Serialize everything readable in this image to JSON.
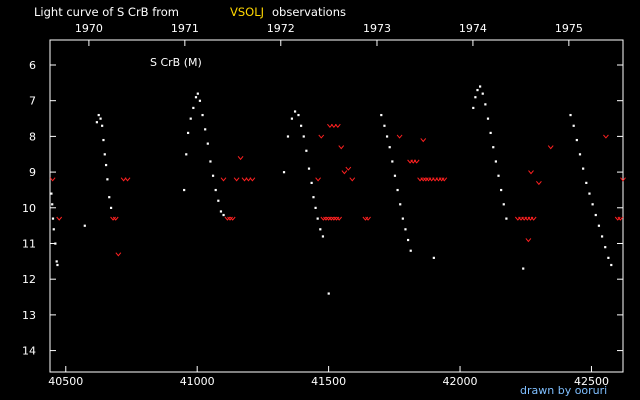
{
  "header": {
    "title_prefix": "Light curve of S CrB from",
    "title_source": "VSOLJ",
    "title_suffix": "observations"
  },
  "inner_label": "S CrB (M)",
  "credit": "drawn by ooruri",
  "colors": {
    "background": "#000000",
    "text": "#ffffff",
    "source_highlight": "#ffd700",
    "credit": "#7fbfff",
    "visual_obs": "#ffffff",
    "fainter_than": "#ff2020"
  },
  "chart_data": {
    "type": "scatter",
    "xlabel": "",
    "ylabel": "",
    "xlim": [
      40440,
      42620
    ],
    "ylim": [
      14.6,
      5.3
    ],
    "y_inverted": true,
    "grid": false,
    "x_ticks": [
      40500,
      41000,
      41500,
      42000,
      42500
    ],
    "x_tick_labels": [
      "40500",
      "41000",
      "41500",
      "42000",
      "42500"
    ],
    "y_ticks": [
      6,
      7,
      8,
      9,
      10,
      11,
      12,
      13,
      14
    ],
    "y_tick_labels": [
      "6",
      "7",
      "8",
      "9",
      "10",
      "11",
      "12",
      "13",
      "14"
    ],
    "year_labels": [
      "1970",
      "1971",
      "1972",
      "1973",
      "1974",
      "1975"
    ],
    "year_jd": [
      40588,
      40953,
      41318,
      41684,
      42049,
      42414
    ],
    "series": [
      {
        "marker": "dot",
        "points": [
          [
            40445,
            9.6
          ],
          [
            40448,
            9.9
          ],
          [
            40451,
            10.3
          ],
          [
            40454,
            10.6
          ],
          [
            40460,
            11.0
          ],
          [
            40465,
            11.5
          ],
          [
            40468,
            11.6
          ],
          [
            40572,
            10.5
          ],
          [
            40618,
            7.6
          ],
          [
            40625,
            7.4
          ],
          [
            40632,
            7.5
          ],
          [
            40638,
            7.7
          ],
          [
            40643,
            8.1
          ],
          [
            40648,
            8.5
          ],
          [
            40653,
            8.8
          ],
          [
            40658,
            9.2
          ],
          [
            40665,
            9.7
          ],
          [
            40672,
            10.0
          ],
          [
            40950,
            9.5
          ],
          [
            40958,
            8.5
          ],
          [
            40965,
            7.9
          ],
          [
            40975,
            7.5
          ],
          [
            40985,
            7.2
          ],
          [
            40995,
            6.9
          ],
          [
            41002,
            6.8
          ],
          [
            41010,
            7.0
          ],
          [
            41020,
            7.4
          ],
          [
            41030,
            7.8
          ],
          [
            41040,
            8.2
          ],
          [
            41050,
            8.7
          ],
          [
            41060,
            9.1
          ],
          [
            41070,
            9.5
          ],
          [
            41080,
            9.8
          ],
          [
            41090,
            10.1
          ],
          [
            41100,
            10.2
          ],
          [
            41330,
            9.0
          ],
          [
            41345,
            8.0
          ],
          [
            41360,
            7.5
          ],
          [
            41372,
            7.3
          ],
          [
            41385,
            7.4
          ],
          [
            41395,
            7.7
          ],
          [
            41405,
            8.0
          ],
          [
            41415,
            8.4
          ],
          [
            41425,
            8.9
          ],
          [
            41435,
            9.3
          ],
          [
            41442,
            9.7
          ],
          [
            41450,
            10.0
          ],
          [
            41458,
            10.3
          ],
          [
            41468,
            10.6
          ],
          [
            41478,
            10.8
          ],
          [
            41500,
            12.4
          ],
          [
            41700,
            7.4
          ],
          [
            41712,
            7.7
          ],
          [
            41722,
            8.0
          ],
          [
            41732,
            8.3
          ],
          [
            41742,
            8.7
          ],
          [
            41752,
            9.1
          ],
          [
            41762,
            9.5
          ],
          [
            41772,
            9.9
          ],
          [
            41782,
            10.3
          ],
          [
            41792,
            10.6
          ],
          [
            41802,
            10.9
          ],
          [
            41812,
            11.2
          ],
          [
            41900,
            11.4
          ],
          [
            42050,
            7.2
          ],
          [
            42058,
            6.9
          ],
          [
            42066,
            6.7
          ],
          [
            42076,
            6.6
          ],
          [
            42086,
            6.8
          ],
          [
            42096,
            7.1
          ],
          [
            42106,
            7.5
          ],
          [
            42116,
            7.9
          ],
          [
            42126,
            8.3
          ],
          [
            42136,
            8.7
          ],
          [
            42146,
            9.1
          ],
          [
            42156,
            9.5
          ],
          [
            42166,
            9.9
          ],
          [
            42176,
            10.3
          ],
          [
            42240,
            11.7
          ],
          [
            42420,
            7.4
          ],
          [
            42432,
            7.7
          ],
          [
            42444,
            8.1
          ],
          [
            42456,
            8.5
          ],
          [
            42468,
            8.9
          ],
          [
            42480,
            9.3
          ],
          [
            42492,
            9.6
          ],
          [
            42504,
            9.9
          ],
          [
            42516,
            10.2
          ],
          [
            42528,
            10.5
          ],
          [
            42540,
            10.8
          ],
          [
            42552,
            11.1
          ],
          [
            42564,
            11.4
          ],
          [
            42575,
            11.6
          ]
        ]
      },
      {
        "marker": "v",
        "points": [
          [
            40450,
            9.2
          ],
          [
            40475,
            10.3
          ],
          [
            40680,
            10.3
          ],
          [
            40690,
            10.3
          ],
          [
            40700,
            11.3
          ],
          [
            40720,
            9.2
          ],
          [
            40735,
            9.2
          ],
          [
            41100,
            9.2
          ],
          [
            41115,
            10.3
          ],
          [
            41125,
            10.3
          ],
          [
            41135,
            10.3
          ],
          [
            41150,
            9.2
          ],
          [
            41165,
            8.6
          ],
          [
            41180,
            9.2
          ],
          [
            41195,
            9.2
          ],
          [
            41210,
            9.2
          ],
          [
            41460,
            9.2
          ],
          [
            41472,
            8.0
          ],
          [
            41480,
            10.3
          ],
          [
            41490,
            10.3
          ],
          [
            41500,
            10.3
          ],
          [
            41510,
            10.3
          ],
          [
            41520,
            10.3
          ],
          [
            41530,
            10.3
          ],
          [
            41540,
            10.3
          ],
          [
            41505,
            7.7
          ],
          [
            41520,
            7.7
          ],
          [
            41535,
            7.7
          ],
          [
            41548,
            8.3
          ],
          [
            41560,
            9.0
          ],
          [
            41575,
            8.9
          ],
          [
            41590,
            9.2
          ],
          [
            41640,
            10.3
          ],
          [
            41650,
            10.3
          ],
          [
            41810,
            8.7
          ],
          [
            41822,
            8.7
          ],
          [
            41835,
            8.7
          ],
          [
            41848,
            9.2
          ],
          [
            41860,
            9.2
          ],
          [
            41870,
            9.2
          ],
          [
            41880,
            9.2
          ],
          [
            41892,
            9.2
          ],
          [
            41905,
            9.2
          ],
          [
            41918,
            9.2
          ],
          [
            41930,
            9.2
          ],
          [
            41940,
            9.2
          ],
          [
            41860,
            8.1
          ],
          [
            41770,
            8.0
          ],
          [
            42220,
            10.3
          ],
          [
            42232,
            10.3
          ],
          [
            42244,
            10.3
          ],
          [
            42256,
            10.3
          ],
          [
            42268,
            10.3
          ],
          [
            42280,
            10.3
          ],
          [
            42260,
            10.9
          ],
          [
            42270,
            9.0
          ],
          [
            42300,
            9.3
          ],
          [
            42345,
            8.3
          ],
          [
            42555,
            8.0
          ],
          [
            42600,
            10.3
          ],
          [
            42610,
            10.3
          ],
          [
            42620,
            9.2
          ]
        ]
      }
    ]
  }
}
